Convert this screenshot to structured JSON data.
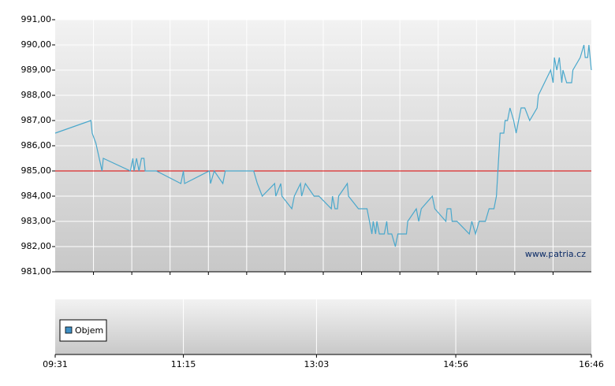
{
  "chart_data": {
    "type": "line",
    "x": [
      "09:31",
      "10:00",
      "10:01",
      "10:04",
      "10:09",
      "10:10",
      "10:32",
      "10:34",
      "10:35",
      "10:37",
      "10:39",
      "10:41",
      "10:43",
      "10:44",
      "10:53",
      "11:13",
      "11:15",
      "11:16",
      "11:36",
      "11:37",
      "11:40",
      "11:47",
      "11:49",
      "12:12",
      "12:15",
      "12:19",
      "12:29",
      "12:30",
      "12:34",
      "12:35",
      "12:43",
      "12:45",
      "12:50",
      "12:51",
      "12:54",
      "13:01",
      "13:05",
      "13:15",
      "13:16",
      "13:18",
      "13:20",
      "13:21",
      "13:28",
      "13:29",
      "13:37",
      "13:44",
      "13:48",
      "13:49",
      "13:51",
      "13:52",
      "13:54",
      "13:58",
      "14:00",
      "14:01",
      "14:04",
      "14:07",
      "14:09",
      "14:16",
      "14:17",
      "14:24",
      "14:26",
      "14:28",
      "14:37",
      "14:39",
      "14:48",
      "14:49",
      "14:52",
      "14:53",
      "14:57",
      "15:07",
      "15:09",
      "15:12",
      "15:15",
      "15:20",
      "15:23",
      "15:27",
      "15:29",
      "15:32",
      "15:35",
      "15:36",
      "15:38",
      "15:40",
      "15:43",
      "15:45",
      "15:49",
      "15:52",
      "15:56",
      "16:02",
      "16:03",
      "16:08",
      "16:13",
      "16:15",
      "16:16",
      "16:18",
      "16:20",
      "16:22",
      "16:23",
      "16:26",
      "16:30",
      "16:31",
      "16:37",
      "16:40",
      "16:41",
      "16:43",
      "16:44",
      "16:46"
    ],
    "values": [
      986.5,
      987.0,
      986.5,
      986.1,
      985.0,
      985.5,
      985.0,
      985.5,
      985.0,
      985.5,
      985.0,
      985.5,
      985.5,
      985.0,
      985.0,
      984.5,
      985.0,
      984.5,
      985.0,
      984.5,
      985.0,
      984.5,
      985.0,
      985.0,
      984.5,
      984.0,
      984.5,
      984.0,
      984.5,
      984.0,
      983.5,
      984.0,
      984.5,
      984.0,
      984.5,
      984.0,
      984.0,
      983.5,
      984.0,
      983.5,
      983.5,
      984.0,
      984.5,
      984.0,
      983.5,
      983.5,
      982.5,
      983.0,
      982.5,
      983.0,
      982.5,
      982.5,
      983.0,
      982.5,
      982.5,
      982.0,
      982.5,
      982.5,
      983.0,
      983.5,
      983.0,
      983.5,
      984.0,
      983.5,
      983.0,
      983.5,
      983.5,
      983.0,
      983.0,
      982.5,
      983.0,
      982.5,
      983.0,
      983.0,
      983.5,
      983.5,
      984.0,
      986.5,
      986.5,
      987.0,
      987.0,
      987.5,
      987.0,
      986.5,
      987.5,
      987.5,
      987.0,
      987.5,
      988.0,
      988.5,
      989.0,
      988.5,
      989.5,
      989.0,
      989.5,
      988.5,
      989.0,
      988.5,
      988.5,
      989.0,
      989.5,
      990.0,
      989.5,
      989.5,
      990.0,
      989.0
    ],
    "color": "#4aa8cc",
    "xlim": [
      "09:31",
      "16:46"
    ],
    "xticks": [
      "09:31",
      "11:15",
      "13:03",
      "14:56",
      "16:46"
    ],
    "ylim": [
      981,
      991
    ],
    "yticks": [
      {
        "value": 981,
        "label": "981,00"
      },
      {
        "value": 982,
        "label": "982,00"
      },
      {
        "value": 983,
        "label": "983,00"
      },
      {
        "value": 984,
        "label": "984,00"
      },
      {
        "value": 985,
        "label": "985,00"
      },
      {
        "value": 986,
        "label": "986,00"
      },
      {
        "value": 987,
        "label": "987,00"
      },
      {
        "value": 988,
        "label": "988,00"
      },
      {
        "value": 989,
        "label": "989,00"
      },
      {
        "value": 990,
        "label": "990,00"
      },
      {
        "value": 991,
        "label": "991,00"
      }
    ],
    "grid": true,
    "reference_line": {
      "value": 985,
      "color": "#dd0000"
    },
    "source": "www.patria.cz",
    "volume": {
      "name": "Objem",
      "color": "#3f8fc4"
    }
  }
}
